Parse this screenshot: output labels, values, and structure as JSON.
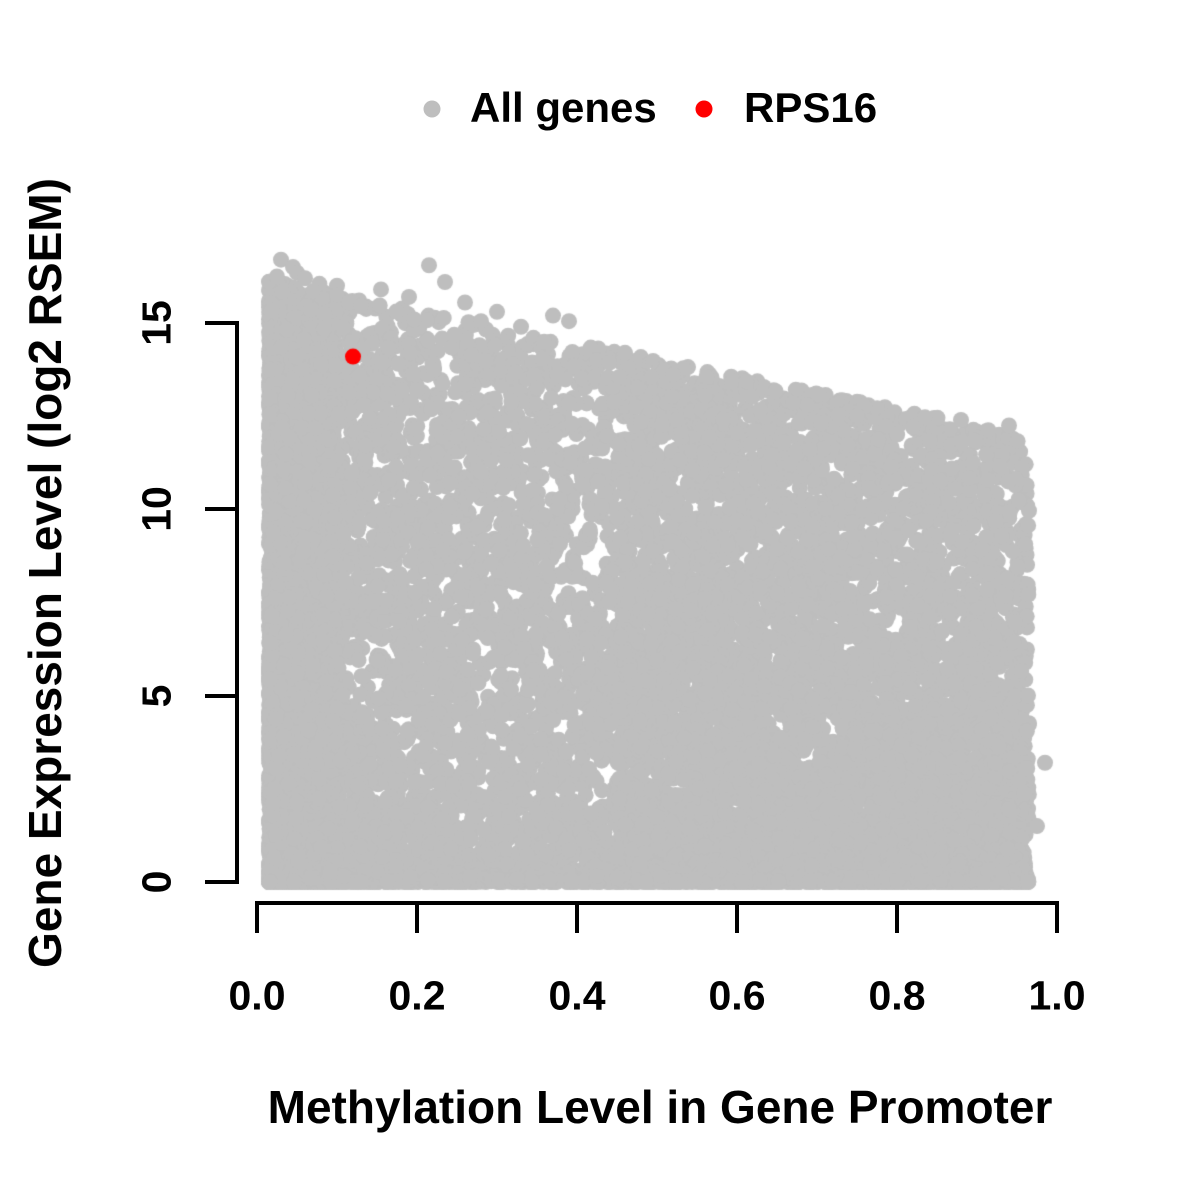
{
  "legend": {
    "items": [
      {
        "label": "All genes",
        "color": "#BEBEBE",
        "marker": "filled-circle"
      },
      {
        "label": "RPS16",
        "color": "#FF0000",
        "marker": "filled-circle"
      }
    ]
  },
  "chart_data": {
    "type": "scatter",
    "title": "",
    "xlabel": "Methylation Level in Gene Promoter",
    "ylabel": "Gene Expression Level (log2 RSEM)",
    "xlim": [
      0,
      1.0
    ],
    "ylim": [
      0,
      16.8
    ],
    "x_ticks": [
      0.0,
      0.2,
      0.4,
      0.6,
      0.8,
      1.0
    ],
    "x_tick_labels": [
      "0.0",
      "0.2",
      "0.4",
      "0.6",
      "0.8",
      "1.0"
    ],
    "y_ticks": [
      0,
      5,
      10,
      15
    ],
    "y_tick_labels": [
      "0",
      "5",
      "10",
      "15"
    ],
    "grid": false,
    "legend_position": "top-center",
    "background": "#ffffff",
    "axis_color": "#000000",
    "series": [
      {
        "name": "All genes",
        "color": "#BEBEBE",
        "marker_radius_px": 8,
        "cloud_model": {
          "comment": "dense cloud of ~15k genes; expression upper envelope declines with methylation; heavy pile-up at expression 0 and at methylation < 0.1",
          "seed": 20240616,
          "n": 15000,
          "x_mixture": [
            {
              "w": 0.28,
              "base": 0.015,
              "span": 0.085,
              "pow": 1.5
            },
            {
              "w": 0.52,
              "base": 0.02,
              "span": 0.945,
              "pow": 1.25
            },
            {
              "w": 0.2,
              "base": 0.45,
              "span": 0.515,
              "pow": 1.0
            }
          ],
          "x_clamp": [
            0.012,
            0.965
          ],
          "envelope": {
            "intercept": 16.2,
            "slope": -4.4
          },
          "y_pow": {
            "base": 1.08,
            "slope": 0.8
          },
          "bottom_band": {
            "frac": 0.1,
            "max": 0.3
          }
        },
        "outlier_points": [
          [
            0.03,
            16.7
          ],
          [
            0.045,
            16.5
          ],
          [
            0.05,
            16.35
          ],
          [
            0.025,
            16.25
          ],
          [
            0.06,
            16.2
          ],
          [
            0.078,
            16.05
          ],
          [
            0.1,
            16.0
          ],
          [
            0.07,
            15.85
          ],
          [
            0.1,
            15.75
          ],
          [
            0.115,
            15.55
          ],
          [
            0.13,
            15.45
          ],
          [
            0.215,
            16.55
          ],
          [
            0.235,
            16.1
          ],
          [
            0.19,
            15.7
          ],
          [
            0.155,
            15.9
          ],
          [
            0.26,
            15.55
          ],
          [
            0.3,
            15.3
          ],
          [
            0.28,
            15.05
          ],
          [
            0.33,
            14.9
          ],
          [
            0.39,
            15.05
          ],
          [
            0.37,
            15.2
          ],
          [
            0.46,
            14.2
          ],
          [
            0.52,
            13.6
          ],
          [
            0.56,
            13.05
          ],
          [
            0.67,
            12.85
          ],
          [
            0.705,
            12.3
          ],
          [
            0.75,
            12.5
          ],
          [
            0.82,
            12.2
          ],
          [
            0.88,
            12.4
          ],
          [
            0.94,
            12.25
          ],
          [
            0.985,
            3.2
          ],
          [
            0.975,
            1.5
          ]
        ]
      },
      {
        "name": "RPS16",
        "color": "#FF0000",
        "marker_radius_px": 8,
        "points": [
          [
            0.12,
            14.1
          ]
        ]
      }
    ]
  }
}
